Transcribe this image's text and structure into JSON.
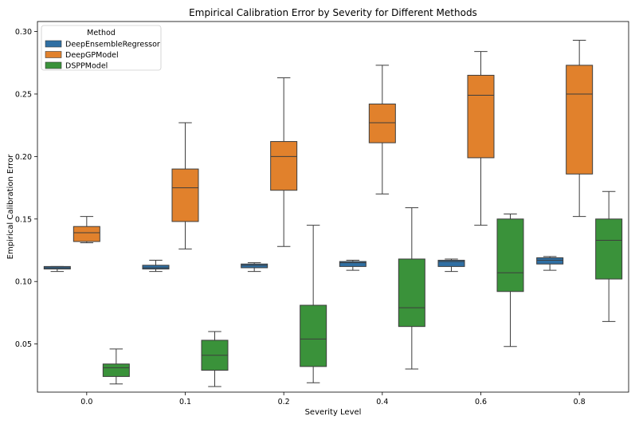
{
  "chart_data": {
    "type": "box",
    "title": "Empirical Calibration Error by Severity for Different Methods",
    "xlabel": "Severity Level",
    "ylabel": "Empirical Calibration Error",
    "categories": [
      "0.0",
      "0.1",
      "0.2",
      "0.4",
      "0.6",
      "0.8"
    ],
    "ylim": [
      0.0115,
      0.308
    ],
    "yticks": [
      0.05,
      0.1,
      0.15,
      0.2,
      0.25,
      0.3
    ],
    "ytick_labels": [
      "0.05",
      "0.10",
      "0.15",
      "0.20",
      "0.25",
      "0.30"
    ],
    "legend": {
      "title": "Method",
      "position": "top-left"
    },
    "series": [
      {
        "name": "DeepEnsembleRegressor",
        "color": "#2f6fa3",
        "boxes": [
          {
            "whisker_low": 0.108,
            "q1": 0.11,
            "median": 0.111,
            "q3": 0.112,
            "whisker_high": 0.112
          },
          {
            "whisker_low": 0.108,
            "q1": 0.11,
            "median": 0.111,
            "q3": 0.113,
            "whisker_high": 0.117
          },
          {
            "whisker_low": 0.108,
            "q1": 0.111,
            "median": 0.113,
            "q3": 0.114,
            "whisker_high": 0.115
          },
          {
            "whisker_low": 0.109,
            "q1": 0.112,
            "median": 0.115,
            "q3": 0.116,
            "whisker_high": 0.117
          },
          {
            "whisker_low": 0.108,
            "q1": 0.112,
            "median": 0.116,
            "q3": 0.117,
            "whisker_high": 0.118
          },
          {
            "whisker_low": 0.109,
            "q1": 0.114,
            "median": 0.117,
            "q3": 0.119,
            "whisker_high": 0.12
          }
        ]
      },
      {
        "name": "DeepGPModel",
        "color": "#e1812c",
        "boxes": [
          {
            "whisker_low": 0.131,
            "q1": 0.132,
            "median": 0.139,
            "q3": 0.144,
            "whisker_high": 0.152
          },
          {
            "whisker_low": 0.126,
            "q1": 0.148,
            "median": 0.175,
            "q3": 0.19,
            "whisker_high": 0.227
          },
          {
            "whisker_low": 0.128,
            "q1": 0.173,
            "median": 0.2,
            "q3": 0.212,
            "whisker_high": 0.263
          },
          {
            "whisker_low": 0.17,
            "q1": 0.211,
            "median": 0.227,
            "q3": 0.242,
            "whisker_high": 0.273
          },
          {
            "whisker_low": 0.145,
            "q1": 0.199,
            "median": 0.249,
            "q3": 0.265,
            "whisker_high": 0.284
          },
          {
            "whisker_low": 0.152,
            "q1": 0.186,
            "median": 0.25,
            "q3": 0.273,
            "whisker_high": 0.293
          }
        ]
      },
      {
        "name": "DSPPModel",
        "color": "#3a923a",
        "boxes": [
          {
            "whisker_low": 0.018,
            "q1": 0.024,
            "median": 0.031,
            "q3": 0.034,
            "whisker_high": 0.046
          },
          {
            "whisker_low": 0.016,
            "q1": 0.029,
            "median": 0.041,
            "q3": 0.053,
            "whisker_high": 0.06
          },
          {
            "whisker_low": 0.019,
            "q1": 0.032,
            "median": 0.054,
            "q3": 0.081,
            "whisker_high": 0.145
          },
          {
            "whisker_low": 0.03,
            "q1": 0.064,
            "median": 0.079,
            "q3": 0.118,
            "whisker_high": 0.159
          },
          {
            "whisker_low": 0.048,
            "q1": 0.092,
            "median": 0.107,
            "q3": 0.15,
            "whisker_high": 0.154
          },
          {
            "whisker_low": 0.068,
            "q1": 0.102,
            "median": 0.133,
            "q3": 0.15,
            "whisker_high": 0.172
          }
        ]
      }
    ]
  }
}
